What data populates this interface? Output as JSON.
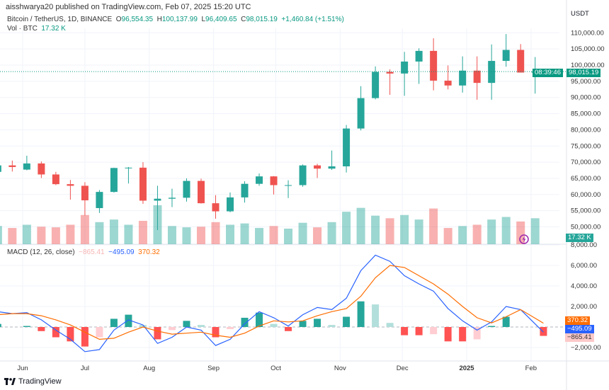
{
  "header": {
    "published": "aisshwarya20 published on TradingView.com, Feb 07, 2025 15:20 UTC"
  },
  "legend": {
    "symbol": "Bitcoin / TetherUS, 1D, BINANCE",
    "o_label": "O",
    "o": "96,554.35",
    "h_label": "H",
    "h": "100,137.99",
    "l_label": "L",
    "l": "96,409.65",
    "c_label": "C",
    "c": "98,015.19",
    "change": "+1,460.84 (+1.51%)",
    "vol_label": "Vol · BTC",
    "vol": "17.32 K"
  },
  "currency": "USDT",
  "last_price": {
    "value": "98,015.19",
    "countdown": "08:39:46",
    "vol": "17.32 K"
  },
  "macd": {
    "label": "MACD (12, 26, close)",
    "hist": "−865.41",
    "macd": "−495.09",
    "signal": "370.32"
  },
  "logo": "TradingView",
  "colors": {
    "up": "#26a69a",
    "down": "#ef5350",
    "macd": "#2962ff",
    "signal": "#ff6d00",
    "hist_up": "#26a69a",
    "hist_down": "#ff5252"
  },
  "chart_data": [
    {
      "type": "candlestick",
      "interval_shown": "weekly summary of daily chart",
      "y_ticks": [
        50000,
        55000,
        60000,
        65000,
        70000,
        75000,
        80000,
        85000,
        90000,
        95000,
        100000,
        105000,
        110000
      ],
      "x_ticks": [
        "Jun",
        "Jul",
        "Aug",
        "Sep",
        "Oct",
        "Nov",
        "Dec",
        "2025",
        "Feb"
      ],
      "candles": [
        [
          "2024-05-20",
          67000,
          71900,
          66000,
          69000,
          28
        ],
        [
          "2024-05-27",
          69000,
          70500,
          67100,
          68500,
          25
        ],
        [
          "2024-06-03",
          67700,
          72000,
          67500,
          69600,
          30
        ],
        [
          "2024-06-10",
          69600,
          70200,
          65100,
          66200,
          27
        ],
        [
          "2024-06-17",
          66200,
          67000,
          62900,
          63200,
          26
        ],
        [
          "2024-06-24",
          63200,
          64500,
          58400,
          62700,
          30
        ],
        [
          "2024-07-01",
          62700,
          63800,
          53500,
          58200,
          45
        ],
        [
          "2024-07-08",
          55800,
          61400,
          54300,
          60800,
          34
        ],
        [
          "2024-07-15",
          60800,
          68300,
          60600,
          68200,
          38
        ],
        [
          "2024-07-22",
          68200,
          68500,
          63400,
          68300,
          30
        ],
        [
          "2024-07-29",
          68300,
          70000,
          57100,
          58100,
          36
        ],
        [
          "2024-08-05",
          58100,
          62700,
          49000,
          58700,
          60
        ],
        [
          "2024-08-12",
          58700,
          61800,
          56100,
          59000,
          28
        ],
        [
          "2024-08-19",
          59000,
          65000,
          57800,
          64200,
          26
        ],
        [
          "2024-08-26",
          64200,
          64900,
          57200,
          57300,
          27
        ],
        [
          "2024-09-02",
          57300,
          59800,
          52500,
          54800,
          34
        ],
        [
          "2024-09-09",
          54800,
          60600,
          54500,
          59100,
          30
        ],
        [
          "2024-09-16",
          59100,
          64100,
          57500,
          63300,
          32
        ],
        [
          "2024-09-23",
          63300,
          66500,
          62700,
          65600,
          25
        ],
        [
          "2024-09-30",
          65600,
          65700,
          60000,
          62900,
          28
        ],
        [
          "2024-10-07",
          62900,
          64400,
          58900,
          62900,
          24
        ],
        [
          "2024-10-14",
          62900,
          69300,
          62400,
          69000,
          33
        ],
        [
          "2024-10-21",
          69000,
          69500,
          65100,
          68000,
          26
        ],
        [
          "2024-10-28",
          68000,
          73600,
          67600,
          68700,
          34
        ],
        [
          "2024-11-04",
          68700,
          81500,
          66800,
          80400,
          50
        ],
        [
          "2024-11-11",
          80400,
          93500,
          79800,
          89800,
          56
        ],
        [
          "2024-11-18",
          89800,
          99600,
          89400,
          97900,
          44
        ],
        [
          "2024-11-25",
          97900,
          98700,
          90800,
          97400,
          40
        ],
        [
          "2024-12-02",
          97400,
          104100,
          90500,
          101100,
          45
        ],
        [
          "2024-12-09",
          101100,
          105200,
          94200,
          104400,
          38
        ],
        [
          "2024-12-16",
          104400,
          108300,
          92200,
          95200,
          55
        ],
        [
          "2024-12-23",
          95200,
          99900,
          92500,
          93700,
          25
        ],
        [
          "2024-12-30",
          93700,
          102700,
          91500,
          98300,
          28
        ],
        [
          "2025-01-06",
          98300,
          102700,
          89300,
          94500,
          30
        ],
        [
          "2025-01-13",
          94500,
          106400,
          89300,
          101300,
          38
        ],
        [
          "2025-01-20",
          101300,
          109600,
          99500,
          104700,
          42
        ],
        [
          "2025-01-27",
          104700,
          106500,
          97800,
          97700,
          35
        ],
        [
          "2025-02-03",
          97700,
          102500,
          91200,
          98015,
          40
        ]
      ]
    },
    {
      "type": "macd",
      "y_ticks": [
        -2000,
        2000,
        4000,
        6000,
        8000
      ],
      "points": [
        [
          "2024-05-20",
          1500,
          1200
        ],
        [
          "2024-05-27",
          1300,
          1300
        ],
        [
          "2024-06-03",
          1400,
          1300
        ],
        [
          "2024-06-10",
          700,
          1100
        ],
        [
          "2024-06-17",
          -300,
          700
        ],
        [
          "2024-06-24",
          -1200,
          200
        ],
        [
          "2024-07-01",
          -2400,
          -500
        ],
        [
          "2024-07-08",
          -2200,
          -1200
        ],
        [
          "2024-07-15",
          -300,
          -1100
        ],
        [
          "2024-07-22",
          700,
          -500
        ],
        [
          "2024-07-29",
          200,
          0
        ],
        [
          "2024-08-05",
          -1600,
          -400
        ],
        [
          "2024-08-12",
          -1000,
          -700
        ],
        [
          "2024-08-19",
          0,
          -600
        ],
        [
          "2024-08-26",
          -300,
          -500
        ],
        [
          "2024-09-02",
          -1800,
          -800
        ],
        [
          "2024-09-09",
          -1200,
          -1000
        ],
        [
          "2024-09-16",
          300,
          -600
        ],
        [
          "2024-09-23",
          1500,
          100
        ],
        [
          "2024-09-30",
          900,
          600
        ],
        [
          "2024-10-07",
          100,
          500
        ],
        [
          "2024-10-14",
          1200,
          600
        ],
        [
          "2024-10-21",
          1900,
          1100
        ],
        [
          "2024-10-28",
          1700,
          1500
        ],
        [
          "2024-11-04",
          2800,
          1800
        ],
        [
          "2024-11-11",
          5500,
          3000
        ],
        [
          "2024-11-18",
          7000,
          4800
        ],
        [
          "2024-11-25",
          6400,
          6000
        ],
        [
          "2024-12-02",
          5000,
          5800
        ],
        [
          "2024-12-09",
          4200,
          5000
        ],
        [
          "2024-12-16",
          3500,
          4200
        ],
        [
          "2024-12-23",
          1800,
          3200
        ],
        [
          "2024-12-30",
          600,
          2000
        ],
        [
          "2025-01-06",
          -300,
          900
        ],
        [
          "2025-01-13",
          500,
          400
        ],
        [
          "2025-01-20",
          2000,
          1000
        ],
        [
          "2025-01-27",
          1700,
          1700
        ],
        [
          "2025-02-07",
          -495,
          370
        ]
      ]
    }
  ]
}
